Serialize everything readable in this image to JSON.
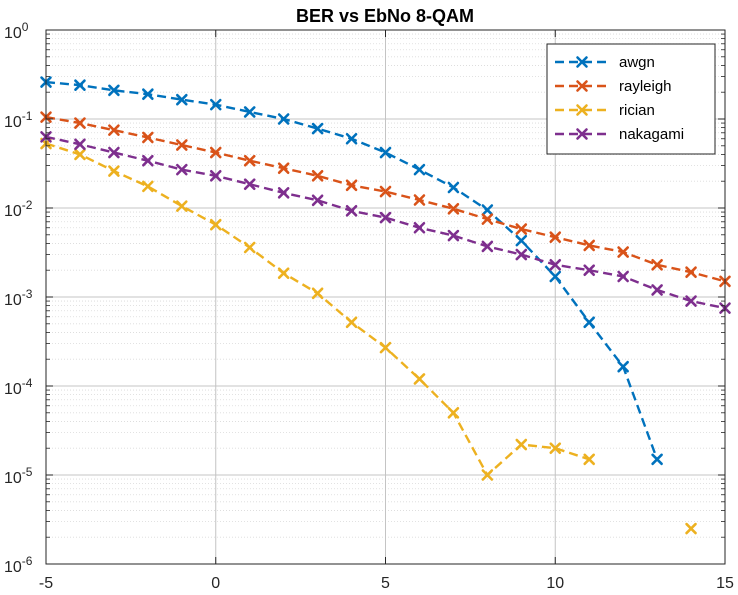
{
  "chart_data": {
    "type": "line",
    "title": "BER vs EbNo 8-QAM",
    "xlabel": "",
    "ylabel": "",
    "xlim": [
      -5,
      15
    ],
    "ylim": [
      1e-06,
      1
    ],
    "yscale": "log",
    "grid": "on (major and minor)",
    "legend_position": "top-right",
    "x_ticks": [
      "-5",
      "0",
      "5",
      "10",
      "15"
    ],
    "y_ticks": [
      {
        "base": "10",
        "exp": "0"
      },
      {
        "base": "10",
        "exp": "-1"
      },
      {
        "base": "10",
        "exp": "-2"
      },
      {
        "base": "10",
        "exp": "-3"
      },
      {
        "base": "10",
        "exp": "-4"
      },
      {
        "base": "10",
        "exp": "-5"
      },
      {
        "base": "10",
        "exp": "-6"
      }
    ],
    "series": [
      {
        "name": "awgn",
        "color": "#0072BD",
        "x": [
          -5,
          -4,
          -3,
          -2,
          -1,
          0,
          1,
          2,
          3,
          4,
          5,
          6,
          7,
          8,
          9,
          10,
          11,
          12,
          13
        ],
        "y": [
          0.26,
          0.24,
          0.21,
          0.19,
          0.165,
          0.145,
          0.12,
          0.1,
          0.078,
          0.06,
          0.042,
          0.027,
          0.017,
          0.0095,
          0.0043,
          0.0017,
          0.00052,
          0.000165,
          1.5e-05
        ]
      },
      {
        "name": "rayleigh",
        "color": "#D95319",
        "x": [
          -5,
          -4,
          -3,
          -2,
          -1,
          0,
          1,
          2,
          3,
          4,
          5,
          6,
          7,
          8,
          9,
          10,
          11,
          12,
          13,
          14,
          15
        ],
        "y": [
          0.105,
          0.09,
          0.075,
          0.062,
          0.051,
          0.042,
          0.034,
          0.028,
          0.023,
          0.018,
          0.0153,
          0.0123,
          0.0098,
          0.0075,
          0.0058,
          0.0047,
          0.0038,
          0.0032,
          0.0023,
          0.0019,
          0.0015
        ]
      },
      {
        "name": "rician",
        "color": "#EDB120",
        "x": [
          -5,
          -4,
          -3,
          -2,
          -1,
          0,
          1,
          2,
          3,
          4,
          5,
          6,
          7,
          8,
          9,
          10,
          11,
          14
        ],
        "y": [
          0.053,
          0.04,
          0.026,
          0.0175,
          0.0105,
          0.0065,
          0.0036,
          0.00185,
          0.0011,
          0.00052,
          0.00027,
          0.00012,
          5e-05,
          1e-05,
          2.2e-05,
          2e-05,
          1.5e-05,
          2.5e-06
        ],
        "gap_before_x": 14
      },
      {
        "name": "nakagami",
        "color": "#7E2F8E",
        "x": [
          -5,
          -4,
          -3,
          -2,
          -1,
          0,
          1,
          2,
          3,
          4,
          5,
          6,
          7,
          8,
          9,
          10,
          11,
          12,
          13,
          14,
          15
        ],
        "y": [
          0.063,
          0.052,
          0.042,
          0.034,
          0.027,
          0.023,
          0.0185,
          0.0148,
          0.0122,
          0.0093,
          0.0078,
          0.006,
          0.0049,
          0.0037,
          0.003,
          0.0023,
          0.002,
          0.0017,
          0.0012,
          0.0009,
          0.00075
        ]
      }
    ]
  }
}
